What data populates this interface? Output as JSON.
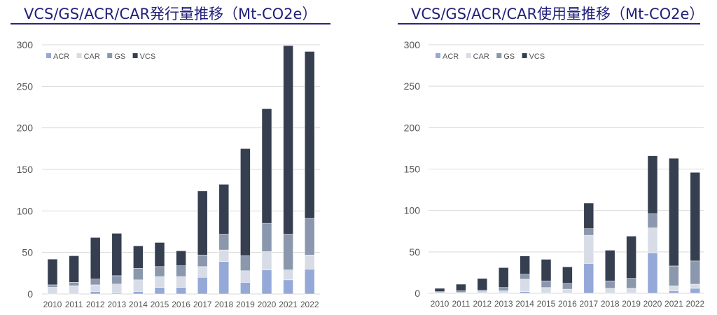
{
  "colors": {
    "ACR": "#95a9d8",
    "CAR": "#d7dce6",
    "GS": "#8a97ad",
    "VCS": "#363f50",
    "title": "#22207a",
    "grid": "#d9d9d9"
  },
  "chart_data": [
    {
      "type": "bar",
      "stacked": true,
      "title": "VCS/GS/ACR/CAR発行量推移（Mt-CO2e）",
      "categories": [
        "2010",
        "2011",
        "2012",
        "2013",
        "2014",
        "2015",
        "2016",
        "2017",
        "2018",
        "2019",
        "2020",
        "2021",
        "2022"
      ],
      "ylim": [
        0,
        300
      ],
      "yticks": [
        0,
        50,
        100,
        150,
        200,
        250,
        300
      ],
      "grid": true,
      "legend": "top-left",
      "series": [
        {
          "name": "ACR",
          "values": [
            0,
            0,
            3,
            1,
            3,
            8,
            8,
            20,
            39,
            14,
            29,
            17,
            30
          ]
        },
        {
          "name": "CAR",
          "values": [
            8,
            10,
            8,
            11,
            14,
            13,
            13,
            13,
            14,
            14,
            22,
            12,
            17
          ]
        },
        {
          "name": "GS",
          "values": [
            3,
            4,
            7,
            10,
            14,
            12,
            13,
            14,
            19,
            18,
            34,
            43,
            44
          ]
        },
        {
          "name": "VCS",
          "values": [
            31,
            32,
            50,
            51,
            27,
            29,
            18,
            77,
            60,
            129,
            138,
            227,
            201
          ]
        }
      ]
    },
    {
      "type": "bar",
      "stacked": true,
      "title": "VCS/GS/ACR/CAR使用量推移（Mt-CO2e）",
      "categories": [
        "2010",
        "2011",
        "2012",
        "2013",
        "2014",
        "2015",
        "2016",
        "2017",
        "2018",
        "2019",
        "2020",
        "2021",
        "2022"
      ],
      "ylim": [
        0,
        300
      ],
      "yticks": [
        0,
        50,
        100,
        150,
        200,
        250,
        300
      ],
      "grid": true,
      "legend": "top-left",
      "series": [
        {
          "name": "ACR",
          "values": [
            0,
            0,
            0,
            0,
            2,
            1,
            0,
            36,
            1,
            1,
            49,
            3,
            6
          ]
        },
        {
          "name": "CAR",
          "values": [
            1,
            1,
            2,
            3,
            15,
            6,
            5,
            34,
            5,
            5,
            30,
            6,
            5
          ]
        },
        {
          "name": "GS",
          "values": [
            1,
            2,
            2,
            4,
            6,
            8,
            7,
            8,
            9,
            12,
            17,
            24,
            28
          ]
        },
        {
          "name": "VCS",
          "values": [
            4,
            8,
            14,
            24,
            22,
            26,
            20,
            31,
            37,
            51,
            70,
            130,
            107
          ]
        }
      ]
    }
  ]
}
